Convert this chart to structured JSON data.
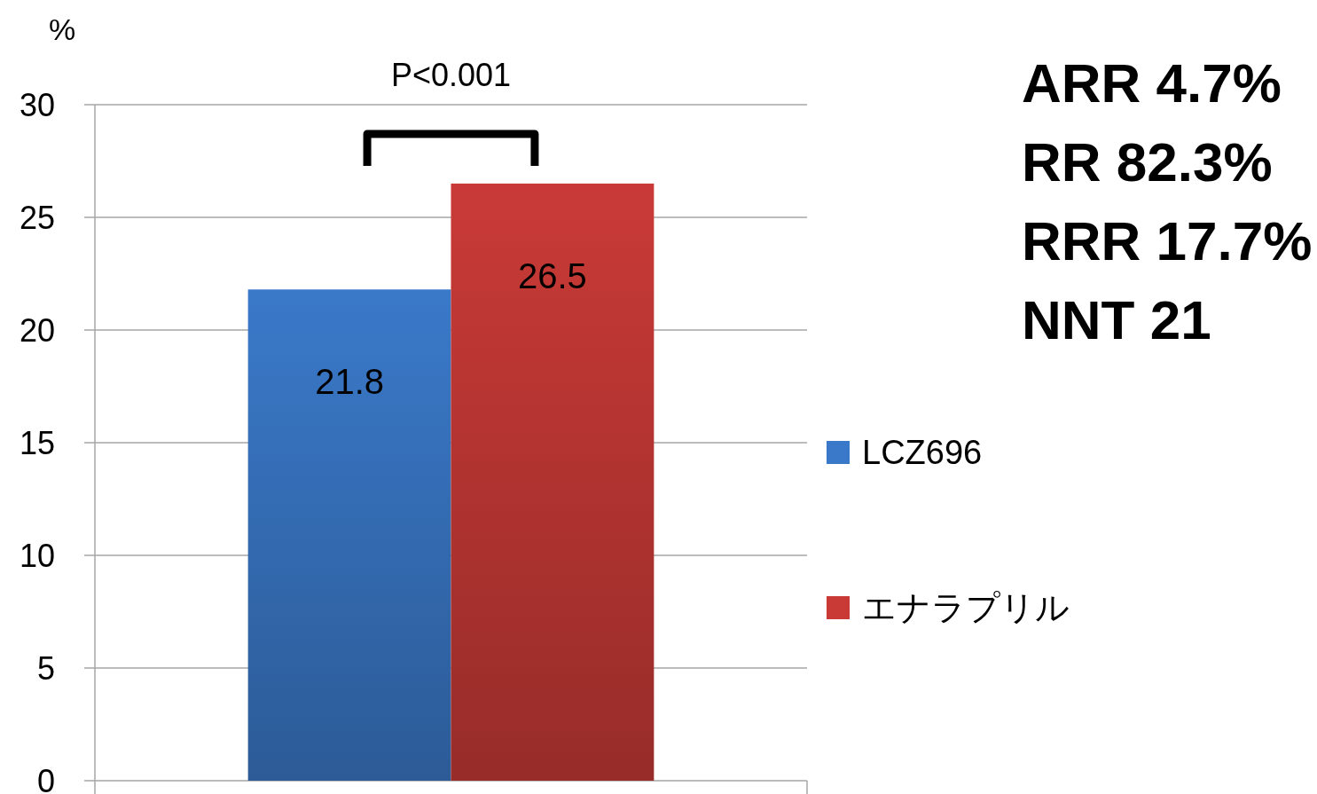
{
  "chart_data": {
    "type": "bar",
    "ylabel": "%",
    "categories": [
      null
    ],
    "series": [
      {
        "name": "LCZ696",
        "color": "#3a79c9",
        "values": [
          21.8
        ]
      },
      {
        "name": "エナラプリル",
        "color": "#c93a37",
        "values": [
          26.5
        ]
      }
    ],
    "ylim": [
      0,
      30
    ],
    "yticks": [
      0,
      5,
      10,
      15,
      20,
      25,
      30
    ],
    "grid": "y",
    "legend": "right",
    "data_labels": true,
    "annotations": [
      "P<0.001",
      "ARR 4.7%",
      "RR 82.3%",
      "RRR 17.7%",
      "NNT 21"
    ]
  }
}
